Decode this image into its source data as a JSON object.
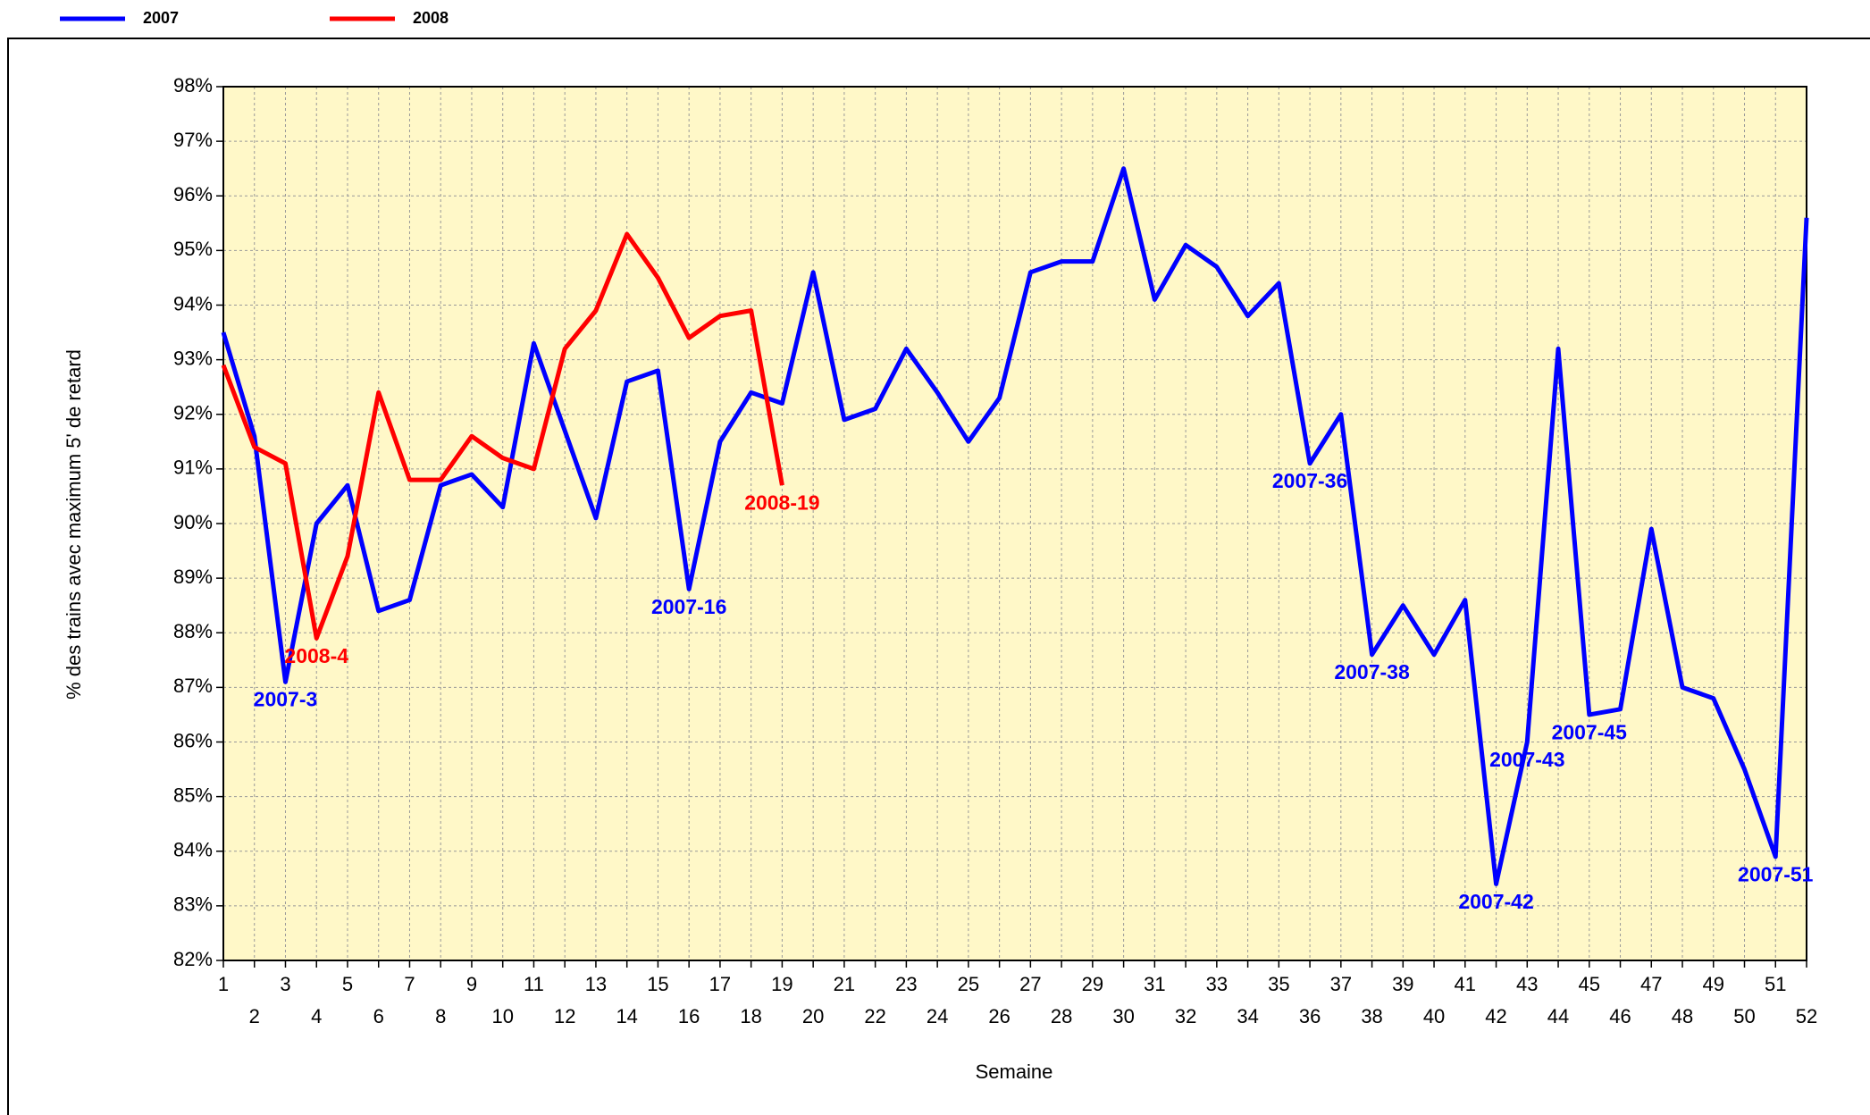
{
  "chart_data": {
    "type": "line",
    "x_label": "Semaine",
    "y_label": "% des trains avec maximum 5' de retard",
    "x": [
      1,
      2,
      3,
      4,
      5,
      6,
      7,
      8,
      9,
      10,
      11,
      12,
      13,
      14,
      15,
      16,
      17,
      18,
      19,
      20,
      21,
      22,
      23,
      24,
      25,
      26,
      27,
      28,
      29,
      30,
      31,
      32,
      33,
      34,
      35,
      36,
      37,
      38,
      39,
      40,
      41,
      42,
      43,
      44,
      45,
      46,
      47,
      48,
      49,
      50,
      51,
      52
    ],
    "xlim": [
      1,
      52
    ],
    "xticks": [
      1,
      2,
      3,
      4,
      5,
      6,
      7,
      8,
      9,
      10,
      11,
      12,
      13,
      14,
      15,
      16,
      17,
      18,
      19,
      20,
      21,
      22,
      23,
      24,
      25,
      26,
      27,
      28,
      29,
      30,
      31,
      32,
      33,
      34,
      35,
      36,
      37,
      38,
      39,
      40,
      41,
      42,
      43,
      44,
      45,
      46,
      47,
      48,
      49,
      50,
      51,
      52
    ],
    "ylim": [
      82,
      98
    ],
    "yticks": [
      {
        "value": 82,
        "label": "82%"
      },
      {
        "value": 83,
        "label": "83%"
      },
      {
        "value": 84,
        "label": "84%"
      },
      {
        "value": 85,
        "label": "85%"
      },
      {
        "value": 86,
        "label": "86%"
      },
      {
        "value": 87,
        "label": "87%"
      },
      {
        "value": 88,
        "label": "88%"
      },
      {
        "value": 89,
        "label": "89%"
      },
      {
        "value": 90,
        "label": "90%"
      },
      {
        "value": 91,
        "label": "91%"
      },
      {
        "value": 92,
        "label": "92%"
      },
      {
        "value": 93,
        "label": "93%"
      },
      {
        "value": 94,
        "label": "94%"
      },
      {
        "value": 95,
        "label": "95%"
      },
      {
        "value": 96,
        "label": "96%"
      },
      {
        "value": 97,
        "label": "97%"
      },
      {
        "value": 98,
        "label": "98%"
      }
    ],
    "grid": true,
    "legend": "top-left",
    "series": [
      {
        "name": "2007",
        "color": "#0000ff",
        "values": [
          93.5,
          91.6,
          87.1,
          90.0,
          90.7,
          88.4,
          88.6,
          90.7,
          90.9,
          90.3,
          93.3,
          91.7,
          90.1,
          92.6,
          92.8,
          88.8,
          91.5,
          92.4,
          92.2,
          94.6,
          91.9,
          92.1,
          93.2,
          92.4,
          91.5,
          92.3,
          94.6,
          94.8,
          94.8,
          96.5,
          94.1,
          95.1,
          94.7,
          93.8,
          94.4,
          91.1,
          92.0,
          87.6,
          88.5,
          87.6,
          88.6,
          83.4,
          86.0,
          93.2,
          86.5,
          86.6,
          89.9,
          87.0,
          86.8,
          85.5,
          83.9,
          95.6
        ],
        "annotations": [
          {
            "x": 3,
            "text": "2007-3"
          },
          {
            "x": 16,
            "text": "2007-16"
          },
          {
            "x": 36,
            "text": "2007-36"
          },
          {
            "x": 38,
            "text": "2007-38"
          },
          {
            "x": 42,
            "text": "2007-42"
          },
          {
            "x": 43,
            "text": "2007-43"
          },
          {
            "x": 45,
            "text": "2007-45"
          },
          {
            "x": 51,
            "text": "2007-51"
          }
        ]
      },
      {
        "name": "2008",
        "color": "#ff0000",
        "values": [
          92.9,
          91.4,
          91.1,
          87.9,
          89.4,
          92.4,
          90.8,
          90.8,
          91.6,
          91.2,
          91.0,
          93.2,
          93.9,
          95.3,
          94.5,
          93.4,
          93.8,
          93.9,
          90.7,
          null,
          null,
          null,
          null,
          null,
          null,
          null,
          null,
          null,
          null,
          null,
          null,
          null,
          null,
          null,
          null,
          null,
          null,
          null,
          null,
          null,
          null,
          null,
          null,
          null,
          null,
          null,
          null,
          null,
          null,
          null,
          null,
          null
        ],
        "annotations": [
          {
            "x": 4,
            "text": "2008-4"
          },
          {
            "x": 19,
            "text": "2008-19"
          }
        ]
      }
    ]
  }
}
